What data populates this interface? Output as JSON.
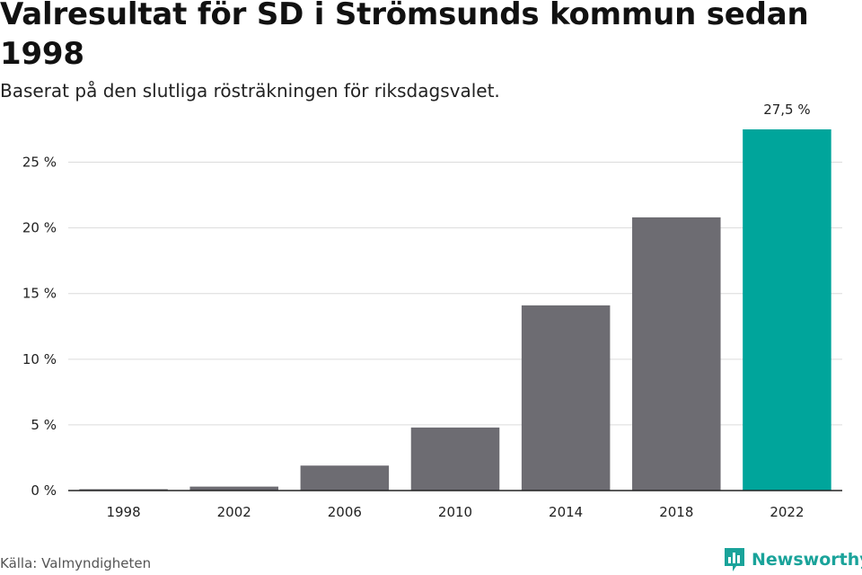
{
  "title": "Valresultat för SD i Strömsunds kommun sedan 1998",
  "subtitle": "Baserat på den slutliga rösträkningen för riksdagsvalet.",
  "source": "Källa: Valmyndigheten",
  "brand": {
    "name": "Newsworthy",
    "icon": "newsworthy-logo-icon"
  },
  "colors": {
    "bar": "#6d6c72",
    "highlight": "#00a59b",
    "grid": "#dcdcdc",
    "axis": "#222222"
  },
  "chart_data": {
    "type": "bar",
    "categories": [
      "1998",
      "2002",
      "2006",
      "2010",
      "2014",
      "2018",
      "2022"
    ],
    "values": [
      0.1,
      0.3,
      1.9,
      4.8,
      14.1,
      20.8,
      27.5
    ],
    "highlight_index": 6,
    "data_labels": {
      "6": "27,5 %"
    },
    "yticks": [
      {
        "value": 0,
        "label": "0 %"
      },
      {
        "value": 5,
        "label": "5 %"
      },
      {
        "value": 10,
        "label": "10 %"
      },
      {
        "value": 15,
        "label": "15 %"
      },
      {
        "value": 20,
        "label": "20 %"
      },
      {
        "value": 25,
        "label": "25 %"
      }
    ],
    "ylim": [
      0,
      27.5
    ],
    "grid": true,
    "xlabel": "",
    "ylabel": ""
  }
}
